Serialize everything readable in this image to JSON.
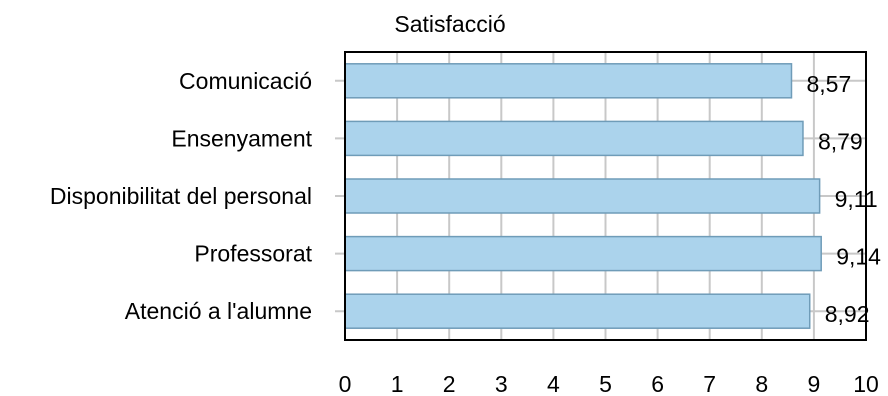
{
  "chart_data": {
    "type": "bar",
    "orientation": "horizontal",
    "title": "Satisfacció",
    "xlabel": "",
    "ylabel": "",
    "categories": [
      "Comunicació",
      "Ensenyament",
      "Disponibilitat del personal",
      "Professorat",
      "Atenció a l'alumne"
    ],
    "values": [
      8.57,
      8.79,
      9.11,
      9.14,
      8.92
    ],
    "value_labels": [
      "8,57",
      "8,79",
      "9,11",
      "9,14",
      "8,92"
    ],
    "xlim": [
      0,
      10
    ],
    "xticks": [
      "0",
      "1",
      "2",
      "3",
      "4",
      "5",
      "6",
      "7",
      "8",
      "9",
      "10"
    ],
    "grid": true,
    "legend": "none",
    "colors": {
      "bar_fill": "#abd3ec",
      "bar_stroke": "#6f9cb8",
      "grid": "#c8c8c8",
      "frame": "#000000"
    }
  }
}
